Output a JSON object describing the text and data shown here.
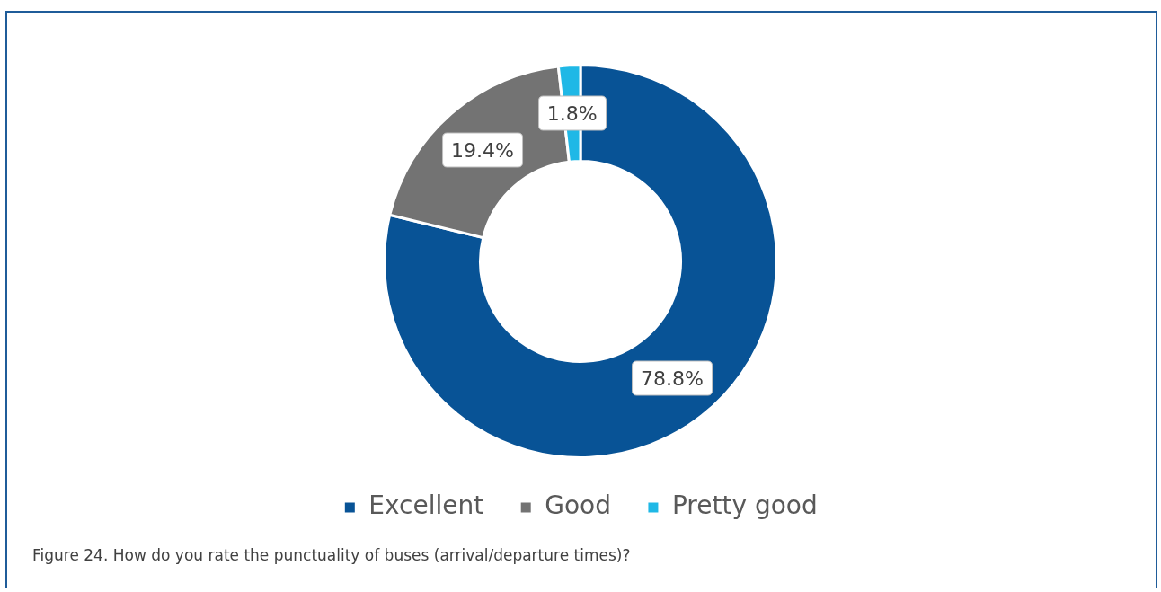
{
  "chart_data": {
    "type": "donut",
    "categories": [
      "Excellent",
      "Good",
      "Pretty good"
    ],
    "values": [
      78.8,
      19.4,
      1.8
    ],
    "colors": [
      "#085396",
      "#737373",
      "#1fb8e6"
    ],
    "value_labels": [
      "78.8%",
      "19.4%",
      "1.8%"
    ],
    "legend": "bottom",
    "annotations": [
      "Figure 24. How do you rate the punctuality of buses (arrival/departure times)?"
    ]
  }
}
